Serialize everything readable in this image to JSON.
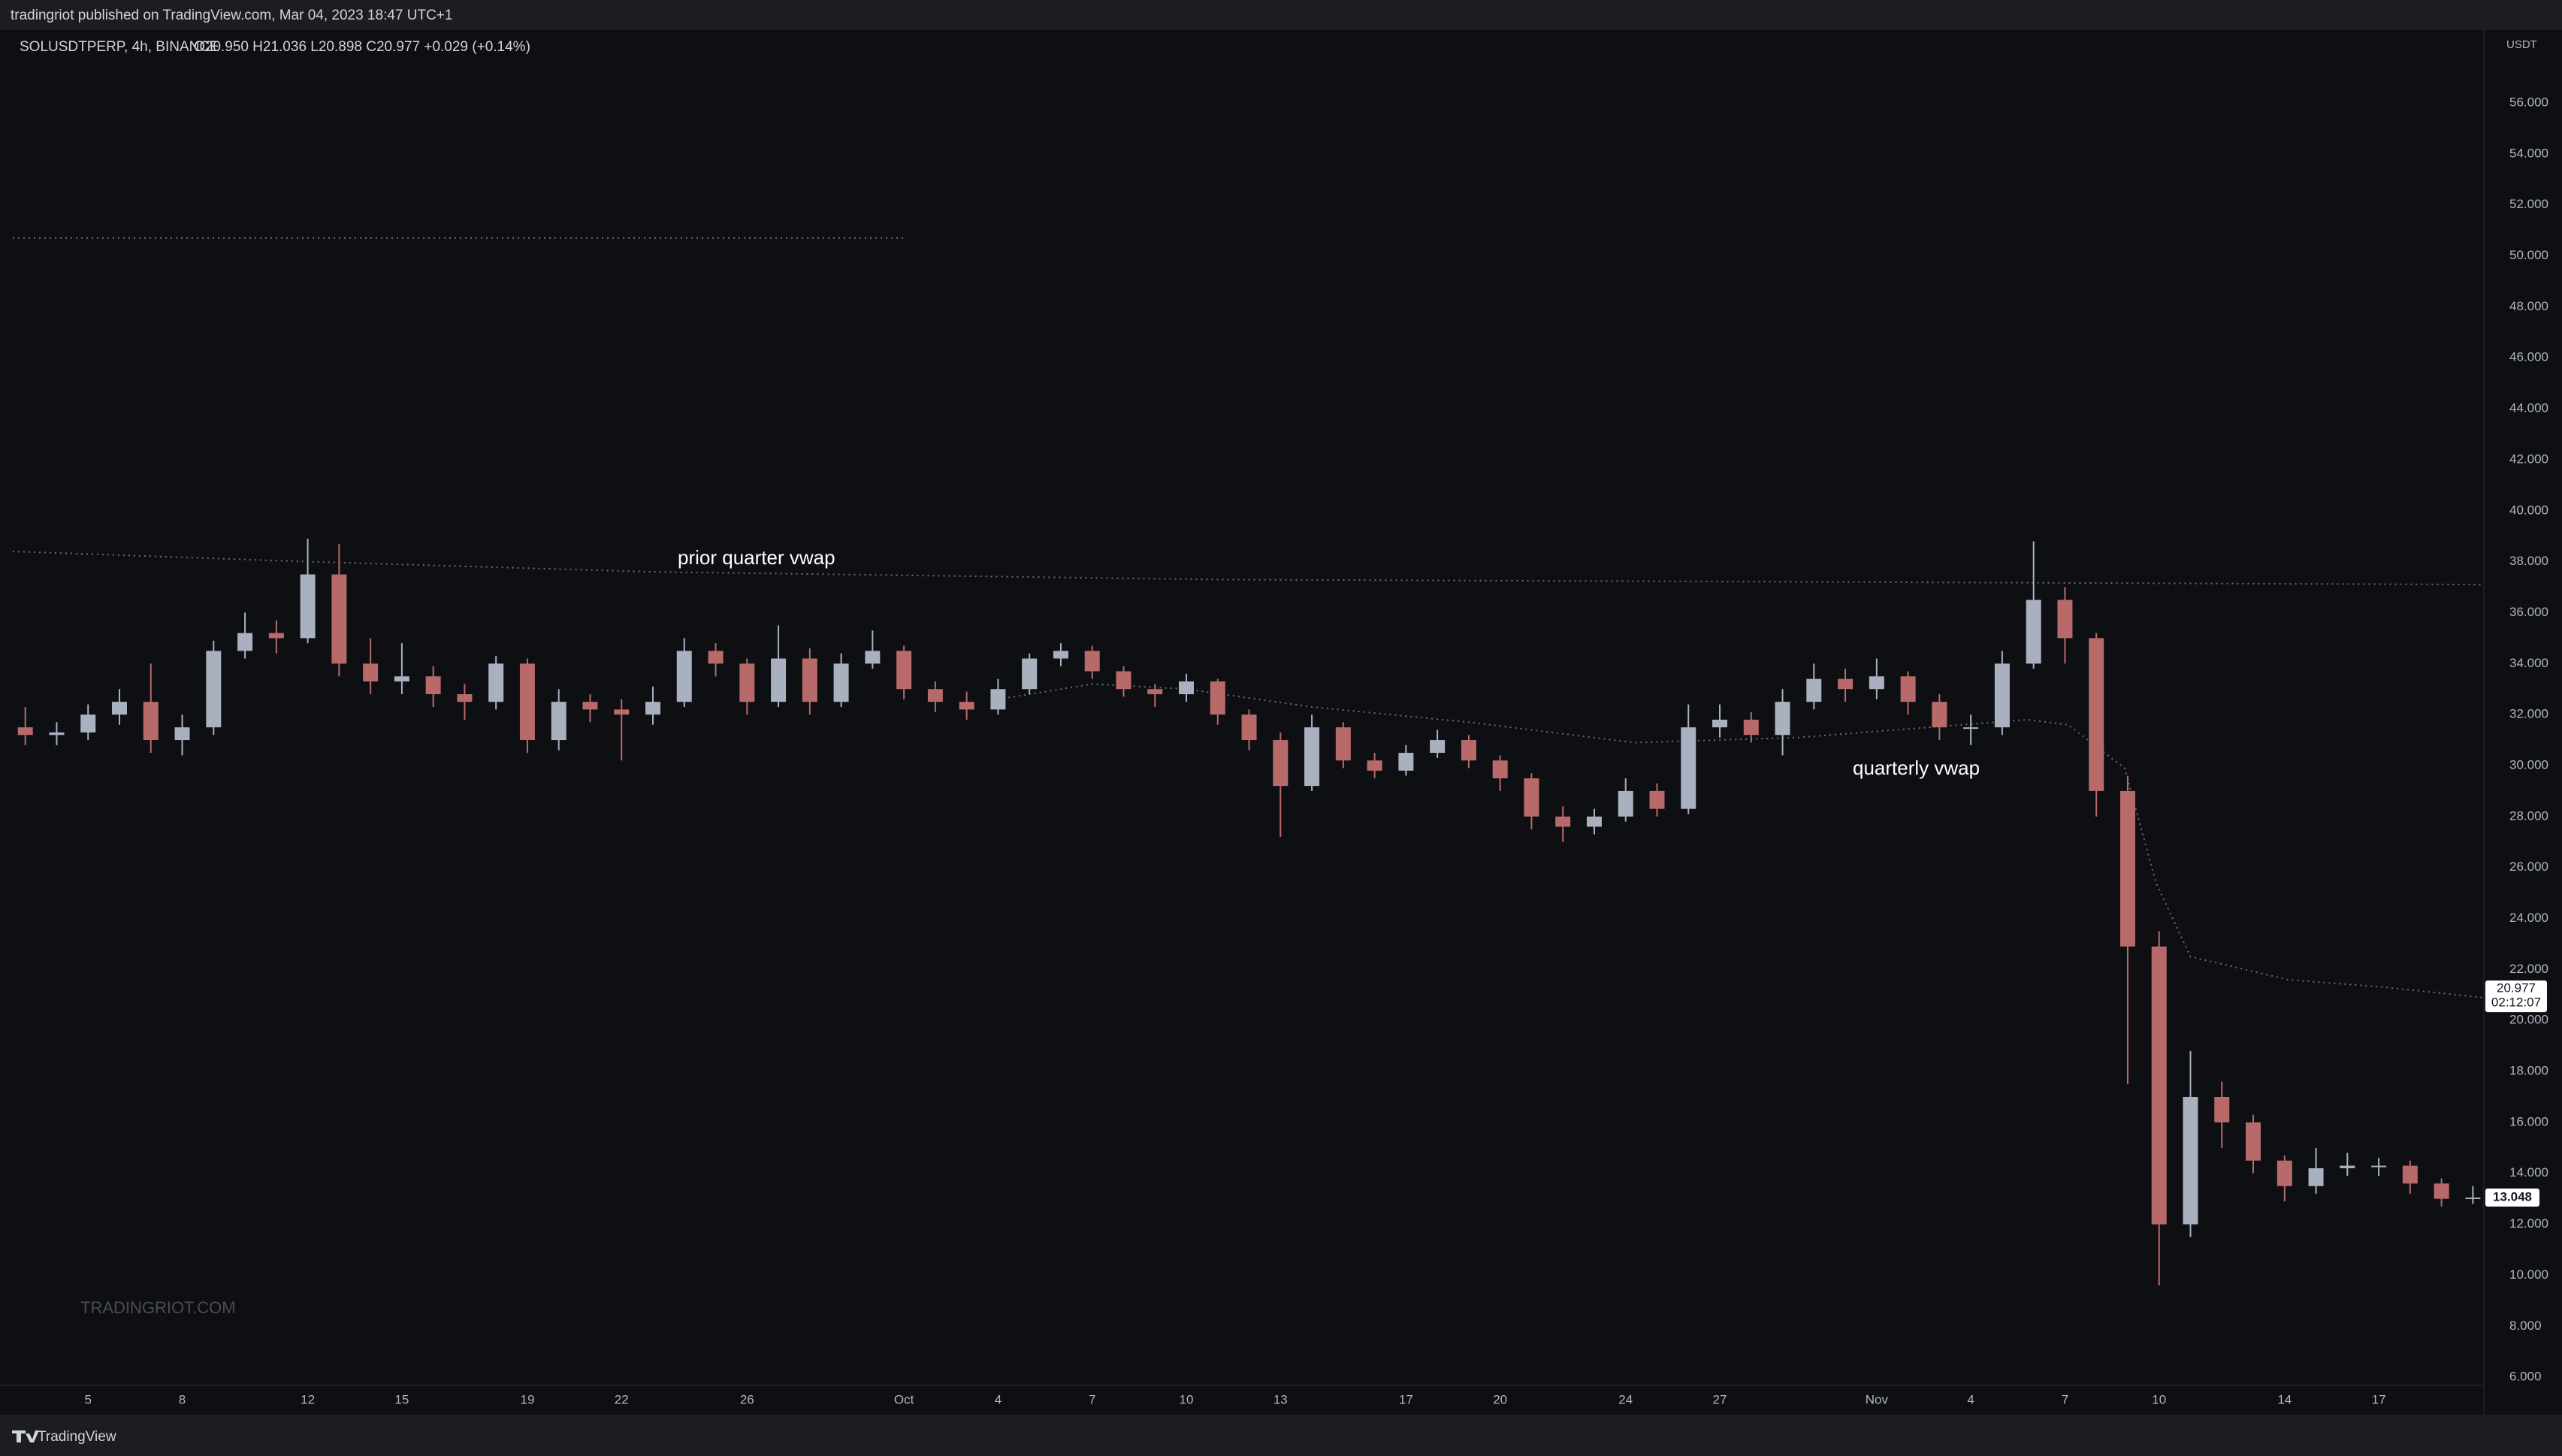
{
  "header": {
    "published": "tradingriot published on TradingView.com, Mar 04, 2023 18:47 UTC+1",
    "symbol": "SOLUSDTPERP, 4h, BINANCE",
    "ohlc": "O20.950 H21.036 L20.898 C20.977 +0.029 (+0.14%)"
  },
  "footer": {
    "brand": "TradingView"
  },
  "chart_data": {
    "type": "candlestick",
    "currency": "USDT",
    "watermark": "TRADINGRIOT.COM",
    "x": [
      2,
      3,
      4,
      5,
      6,
      7,
      8,
      9,
      10,
      11,
      12,
      13,
      14,
      15,
      16,
      17,
      18,
      19,
      20,
      21,
      22,
      23,
      24,
      25,
      26,
      27,
      28,
      29,
      30,
      31,
      32,
      33,
      34,
      35,
      36,
      37,
      38,
      39,
      40,
      41,
      42,
      43,
      44,
      45,
      46,
      47,
      48,
      49,
      50,
      51,
      52,
      53,
      54,
      55,
      56,
      57,
      58,
      59,
      60,
      61,
      62,
      63,
      64,
      65,
      66,
      67,
      68,
      69,
      70,
      71,
      72,
      73,
      74,
      75,
      76,
      77,
      78,
      79,
      80
    ],
    "open": [
      31.5,
      31.2,
      31.3,
      32.0,
      32.5,
      31.0,
      31.5,
      34.5,
      35.2,
      35.0,
      37.5,
      34.0,
      33.3,
      33.5,
      32.8,
      32.5,
      34.0,
      31.0,
      32.5,
      32.2,
      32.0,
      32.5,
      34.5,
      34.0,
      32.5,
      34.2,
      32.5,
      34.0,
      34.5,
      33.0,
      32.5,
      32.2,
      33.0,
      34.2,
      34.5,
      33.7,
      33.0,
      32.8,
      33.3,
      32.0,
      31.0,
      29.2,
      31.5,
      30.2,
      29.8,
      30.5,
      31.0,
      30.2,
      29.5,
      28.0,
      27.6,
      28.0,
      29.0,
      28.3,
      31.5,
      31.8,
      31.2,
      32.5,
      33.4,
      33.0,
      33.5,
      32.5,
      31.5,
      31.5,
      34.0,
      36.5,
      35.0,
      29.0,
      22.9,
      12.0,
      17.0,
      16.0,
      14.5,
      13.5,
      14.2,
      14.3,
      14.3,
      13.6,
      13.0
    ],
    "high": [
      32.3,
      31.7,
      32.4,
      33.0,
      34.0,
      32.0,
      34.9,
      36.0,
      35.7,
      38.9,
      38.7,
      35.0,
      34.8,
      33.9,
      33.2,
      34.3,
      34.2,
      33.0,
      32.8,
      32.6,
      33.1,
      35.0,
      34.8,
      34.2,
      35.5,
      34.6,
      34.4,
      35.3,
      34.7,
      33.3,
      32.9,
      33.4,
      34.4,
      34.8,
      34.7,
      33.9,
      33.2,
      33.6,
      33.4,
      32.2,
      31.3,
      32.0,
      31.7,
      30.5,
      30.8,
      31.4,
      31.2,
      30.4,
      29.7,
      28.4,
      28.3,
      29.5,
      29.3,
      32.4,
      32.4,
      32.1,
      33.0,
      34.0,
      33.8,
      34.2,
      33.7,
      32.8,
      32.0,
      34.5,
      38.8,
      37.0,
      35.2,
      29.6,
      23.5,
      18.8,
      17.6,
      16.3,
      14.7,
      15.0,
      14.8,
      14.6,
      14.5,
      13.8,
      13.5
    ],
    "low": [
      30.8,
      30.8,
      31.0,
      31.6,
      30.5,
      30.4,
      31.2,
      34.2,
      34.4,
      34.8,
      33.5,
      32.8,
      32.8,
      32.3,
      31.8,
      32.2,
      30.5,
      30.6,
      31.7,
      30.2,
      31.6,
      32.3,
      33.5,
      32.0,
      32.3,
      32.0,
      32.3,
      33.8,
      32.6,
      32.1,
      31.8,
      32.0,
      32.8,
      33.9,
      33.4,
      32.7,
      32.3,
      32.5,
      31.6,
      30.6,
      27.2,
      29.0,
      29.9,
      29.5,
      29.6,
      30.3,
      29.9,
      29.0,
      27.5,
      27.0,
      27.3,
      27.8,
      28.0,
      28.1,
      31.1,
      30.9,
      30.4,
      32.2,
      32.5,
      32.6,
      32.0,
      31.0,
      30.8,
      31.2,
      33.8,
      34.0,
      28.0,
      17.5,
      9.6,
      11.5,
      15.0,
      14.0,
      12.9,
      13.2,
      13.9,
      13.9,
      13.2,
      12.7,
      12.8
    ],
    "close": [
      31.2,
      31.3,
      32.0,
      32.5,
      31.0,
      31.5,
      34.5,
      35.2,
      35.0,
      37.5,
      34.0,
      33.3,
      33.5,
      32.8,
      32.5,
      34.0,
      31.0,
      32.5,
      32.2,
      32.0,
      32.5,
      34.5,
      34.0,
      32.5,
      34.2,
      32.5,
      34.0,
      34.5,
      33.0,
      32.5,
      32.2,
      33.0,
      34.2,
      34.5,
      33.7,
      33.0,
      32.8,
      33.3,
      32.0,
      31.0,
      29.2,
      31.5,
      30.2,
      29.8,
      30.5,
      31.0,
      30.2,
      29.5,
      28.0,
      27.6,
      28.0,
      29.0,
      28.3,
      31.5,
      31.8,
      31.2,
      32.5,
      33.4,
      33.0,
      33.5,
      32.5,
      31.5,
      31.5,
      34.0,
      36.5,
      35.0,
      29.0,
      22.9,
      12.0,
      17.0,
      16.0,
      14.5,
      13.5,
      14.2,
      14.3,
      14.3,
      13.6,
      13.0,
      13.05
    ],
    "up_color": "#a9b0c0",
    "down_color": "#b86a6a",
    "lines": [
      {
        "x": [
          1.6,
          30
        ],
        "values": [
          50.7,
          50.7
        ],
        "color": "#6b6e78"
      },
      {
        "x": [
          1.6,
          11,
          22,
          40,
          80.3
        ],
        "values": [
          38.4,
          38.0,
          37.6,
          37.3,
          37.1
        ],
        "color": "#6b6e78"
      },
      {
        "x": [
          33,
          36,
          39,
          43,
          48,
          53.3,
          58.5,
          65.8,
          67.1,
          68.9,
          69.9,
          71,
          74.1,
          77.2,
          80.3
        ],
        "values": [
          32.6,
          33.2,
          33.0,
          32.3,
          31.7,
          30.9,
          31.1,
          31.8,
          31.6,
          29.9,
          25.4,
          22.5,
          21.6,
          21.3,
          20.9
        ],
        "color": "#6b6e78"
      }
    ],
    "annotations": [
      "prior quarter vwap",
      "quarterly vwap"
    ],
    "last_price": 20.977,
    "countdown": "02:12:07",
    "price_label": 13.048,
    "grid": false,
    "xlim": [
      1.6,
      80.35
    ],
    "xticks": [
      {
        "value": 4,
        "label": "5"
      },
      {
        "value": 7,
        "label": "8"
      },
      {
        "value": 11,
        "label": "12"
      },
      {
        "value": 14,
        "label": "15"
      },
      {
        "value": 18,
        "label": "19"
      },
      {
        "value": 21,
        "label": "22"
      },
      {
        "value": 25,
        "label": "26"
      },
      {
        "value": 30,
        "label": "Oct"
      },
      {
        "value": 33,
        "label": "4"
      },
      {
        "value": 36,
        "label": "7"
      },
      {
        "value": 39,
        "label": "10"
      },
      {
        "value": 42,
        "label": "13"
      },
      {
        "value": 46,
        "label": "17"
      },
      {
        "value": 49,
        "label": "20"
      },
      {
        "value": 53,
        "label": "24"
      },
      {
        "value": 56,
        "label": "27"
      },
      {
        "value": 61,
        "label": "Nov"
      },
      {
        "value": 64,
        "label": "4"
      },
      {
        "value": 67,
        "label": "7"
      },
      {
        "value": 70,
        "label": "10"
      },
      {
        "value": 74,
        "label": "14"
      },
      {
        "value": 77,
        "label": "17"
      }
    ],
    "ylim": [
      5.68,
      58.83
    ],
    "yticks": [
      {
        "value": 6,
        "label": "6.000"
      },
      {
        "value": 8,
        "label": "8.000"
      },
      {
        "value": 10,
        "label": "10.000"
      },
      {
        "value": 12,
        "label": "12.000"
      },
      {
        "value": 14,
        "label": "14.000"
      },
      {
        "value": 16,
        "label": "16.000"
      },
      {
        "value": 18,
        "label": "18.000"
      },
      {
        "value": 20,
        "label": "20.000"
      },
      {
        "value": 22,
        "label": "22.000"
      },
      {
        "value": 24,
        "label": "24.000"
      },
      {
        "value": 26,
        "label": "26.000"
      },
      {
        "value": 28,
        "label": "28.000"
      },
      {
        "value": 30,
        "label": "30.000"
      },
      {
        "value": 32,
        "label": "32.000"
      },
      {
        "value": 34,
        "label": "34.000"
      },
      {
        "value": 36,
        "label": "36.000"
      },
      {
        "value": 38,
        "label": "38.000"
      },
      {
        "value": 40,
        "label": "40.000"
      },
      {
        "value": 42,
        "label": "42.000"
      },
      {
        "value": 44,
        "label": "44.000"
      },
      {
        "value": 46,
        "label": "46.000"
      },
      {
        "value": 48,
        "label": "48.000"
      },
      {
        "value": 50,
        "label": "50.000"
      },
      {
        "value": 52,
        "label": "52.000"
      },
      {
        "value": 54,
        "label": "54.000"
      },
      {
        "value": 56,
        "label": "56.000"
      }
    ]
  }
}
